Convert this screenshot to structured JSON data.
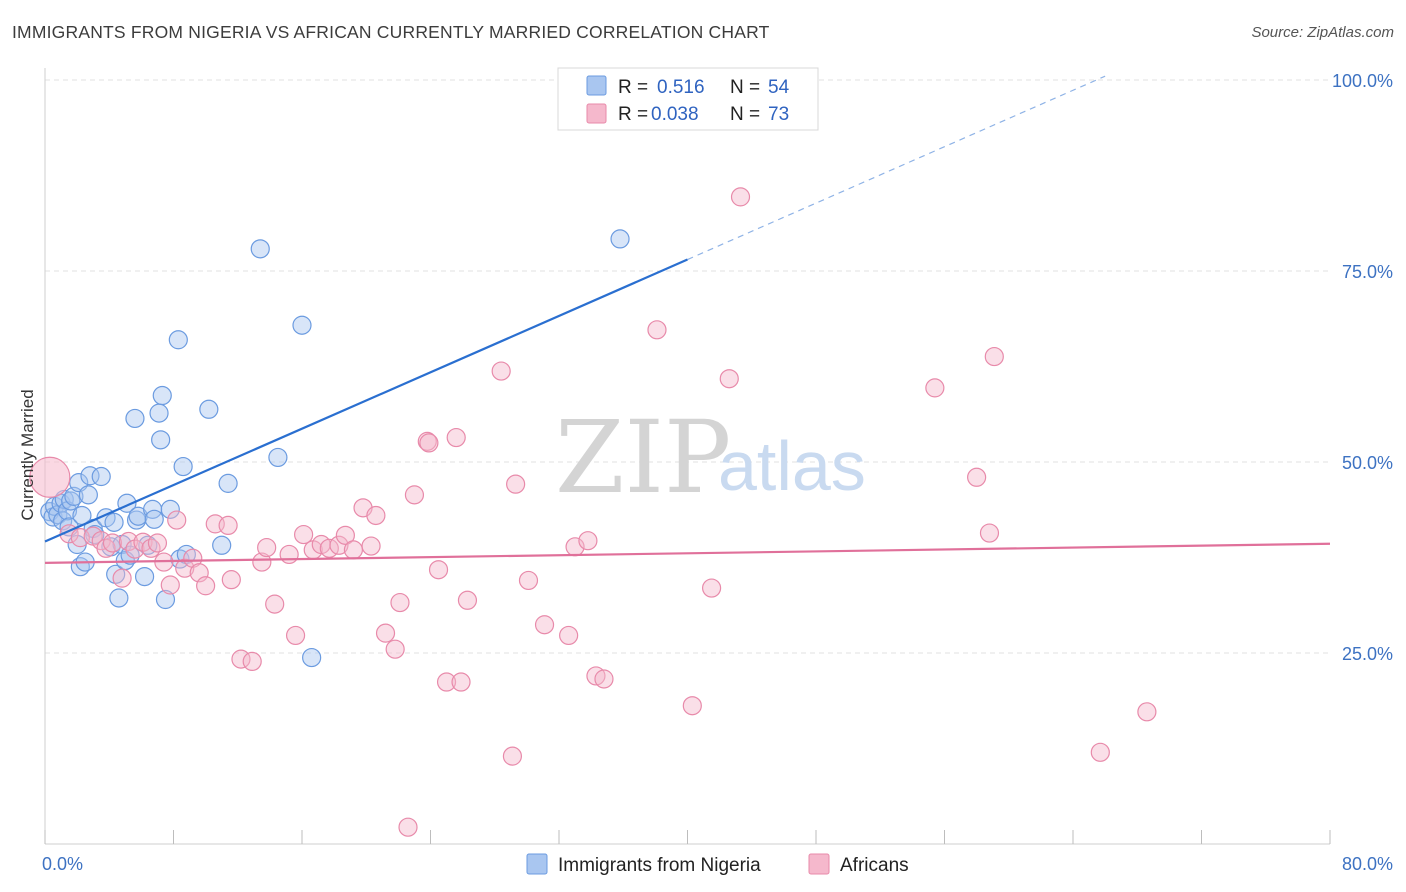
{
  "header": {
    "title": "IMMIGRANTS FROM NIGERIA VS AFRICAN CURRENTLY MARRIED CORRELATION CHART",
    "source": "Source: ZipAtlas.com"
  },
  "watermark": {
    "zip": "ZIP",
    "atlas": "atlas"
  },
  "legend": {
    "rows": [
      {
        "r_label": "R = ",
        "r_value": "0.516",
        "n_label": "N = ",
        "n_value": "54",
        "color": "#a9c6f0"
      },
      {
        "r_label": "R = ",
        "r_value": "0.038",
        "n_label": "N = ",
        "n_value": "73",
        "color": "#f5b8cc"
      }
    ]
  },
  "chart_data": {
    "type": "scatter",
    "title": "IMMIGRANTS FROM NIGERIA VS AFRICAN CURRENTLY MARRIED CORRELATION CHART",
    "xlabel": "",
    "ylabel": "Currently Married",
    "xlim": [
      0,
      80
    ],
    "ylim": [
      0,
      100
    ],
    "x_tick_labels": [
      "0.0%",
      "80.0%"
    ],
    "y_ticks": [
      {
        "value": 25,
        "label": "25.0%"
      },
      {
        "value": 50,
        "label": "50.0%"
      },
      {
        "value": 75,
        "label": "75.0%"
      },
      {
        "value": 100,
        "label": "100.0%"
      }
    ],
    "grid": true,
    "legend_position": "top-center",
    "colors": {
      "nigeria_fill": "#a9c6f0",
      "nigeria_stroke": "#6b9be0",
      "nigeria_line": "#2a6fd0",
      "africans_fill": "#f5b8cc",
      "africans_stroke": "#e88aaa",
      "africans_line": "#e0709a"
    },
    "series": [
      {
        "name": "Immigrants from Nigeria",
        "r": 0.516,
        "n": 54,
        "trend": {
          "x0": 0,
          "y0": 39.6,
          "x1": 40,
          "y1": 76.5,
          "dashed_to_x": 66,
          "dashed_to_y": 100.5
        },
        "points": [
          [
            0.3,
            43.5
          ],
          [
            0.5,
            42.8
          ],
          [
            0.6,
            44.2
          ],
          [
            0.8,
            43.1
          ],
          [
            1.0,
            44.6
          ],
          [
            1.1,
            42.3
          ],
          [
            1.2,
            45.1
          ],
          [
            1.4,
            43.6
          ],
          [
            1.5,
            41.5
          ],
          [
            1.6,
            44.9
          ],
          [
            1.8,
            45.5
          ],
          [
            2.0,
            39.2
          ],
          [
            2.1,
            47.3
          ],
          [
            2.2,
            36.3
          ],
          [
            2.5,
            36.9
          ],
          [
            2.7,
            45.7
          ],
          [
            2.8,
            48.2
          ],
          [
            3.0,
            41.3
          ],
          [
            3.1,
            40.5
          ],
          [
            3.5,
            48.1
          ],
          [
            3.8,
            42.7
          ],
          [
            4.1,
            38.9
          ],
          [
            4.3,
            42.1
          ],
          [
            4.4,
            35.3
          ],
          [
            4.6,
            32.2
          ],
          [
            4.8,
            39.2
          ],
          [
            5.0,
            37.1
          ],
          [
            5.1,
            44.6
          ],
          [
            5.3,
            37.8
          ],
          [
            5.6,
            55.7
          ],
          [
            5.7,
            42.4
          ],
          [
            5.8,
            42.9
          ],
          [
            6.2,
            35.0
          ],
          [
            6.4,
            39.1
          ],
          [
            6.7,
            43.8
          ],
          [
            6.8,
            42.5
          ],
          [
            7.1,
            56.4
          ],
          [
            7.2,
            52.9
          ],
          [
            7.3,
            58.7
          ],
          [
            7.5,
            32.0
          ],
          [
            7.8,
            43.8
          ],
          [
            8.3,
            66.0
          ],
          [
            8.4,
            37.3
          ],
          [
            8.6,
            49.4
          ],
          [
            8.8,
            37.9
          ],
          [
            10.2,
            56.9
          ],
          [
            11.0,
            39.1
          ],
          [
            11.4,
            47.2
          ],
          [
            13.4,
            77.9
          ],
          [
            14.5,
            50.6
          ],
          [
            16.0,
            67.9
          ],
          [
            16.6,
            24.4
          ],
          [
            35.8,
            79.2
          ],
          [
            2.3,
            43.0
          ]
        ]
      },
      {
        "name": "Africans",
        "r": 0.038,
        "n": 73,
        "trend": {
          "x0": 0,
          "y0": 36.8,
          "x1": 80,
          "y1": 39.3
        },
        "points": [
          [
            0.3,
            48.0
          ],
          [
            1.5,
            40.6
          ],
          [
            2.2,
            40.1
          ],
          [
            3.0,
            40.3
          ],
          [
            3.5,
            39.7
          ],
          [
            3.8,
            38.7
          ],
          [
            4.2,
            39.4
          ],
          [
            4.8,
            34.8
          ],
          [
            5.2,
            39.6
          ],
          [
            5.6,
            38.6
          ],
          [
            6.1,
            39.5
          ],
          [
            6.6,
            38.7
          ],
          [
            7.0,
            39.4
          ],
          [
            7.4,
            36.9
          ],
          [
            7.8,
            33.9
          ],
          [
            8.2,
            42.4
          ],
          [
            8.7,
            36.1
          ],
          [
            9.2,
            37.4
          ],
          [
            9.6,
            35.5
          ],
          [
            10.0,
            33.8
          ],
          [
            10.6,
            41.9
          ],
          [
            11.4,
            41.7
          ],
          [
            11.6,
            34.6
          ],
          [
            12.2,
            24.2
          ],
          [
            12.9,
            23.9
          ],
          [
            13.5,
            36.9
          ],
          [
            13.8,
            38.8
          ],
          [
            14.3,
            31.4
          ],
          [
            15.2,
            37.9
          ],
          [
            15.6,
            27.3
          ],
          [
            16.1,
            40.5
          ],
          [
            16.7,
            38.5
          ],
          [
            17.2,
            39.2
          ],
          [
            17.7,
            38.7
          ],
          [
            18.3,
            39.1
          ],
          [
            18.7,
            40.4
          ],
          [
            19.2,
            38.5
          ],
          [
            19.8,
            44.0
          ],
          [
            20.3,
            39.0
          ],
          [
            20.6,
            43.0
          ],
          [
            21.2,
            27.6
          ],
          [
            21.8,
            25.5
          ],
          [
            22.1,
            31.6
          ],
          [
            22.6,
            2.2
          ],
          [
            23.0,
            45.7
          ],
          [
            23.8,
            52.7
          ],
          [
            24.5,
            35.9
          ],
          [
            25.0,
            21.2
          ],
          [
            25.6,
            53.2
          ],
          [
            25.9,
            21.2
          ],
          [
            26.3,
            31.9
          ],
          [
            28.4,
            61.9
          ],
          [
            29.1,
            11.5
          ],
          [
            29.3,
            47.1
          ],
          [
            30.1,
            34.5
          ],
          [
            31.1,
            28.7
          ],
          [
            32.6,
            27.3
          ],
          [
            33.0,
            38.9
          ],
          [
            33.8,
            39.7
          ],
          [
            34.3,
            22.0
          ],
          [
            34.8,
            21.6
          ],
          [
            38.1,
            67.3
          ],
          [
            40.3,
            18.1
          ],
          [
            41.5,
            33.5
          ],
          [
            42.6,
            60.9
          ],
          [
            43.3,
            84.7
          ],
          [
            55.4,
            59.7
          ],
          [
            58.0,
            48.0
          ],
          [
            58.8,
            40.7
          ],
          [
            59.1,
            63.8
          ],
          [
            65.7,
            12.0
          ],
          [
            68.6,
            17.3
          ],
          [
            23.9,
            52.5
          ]
        ]
      }
    ]
  }
}
